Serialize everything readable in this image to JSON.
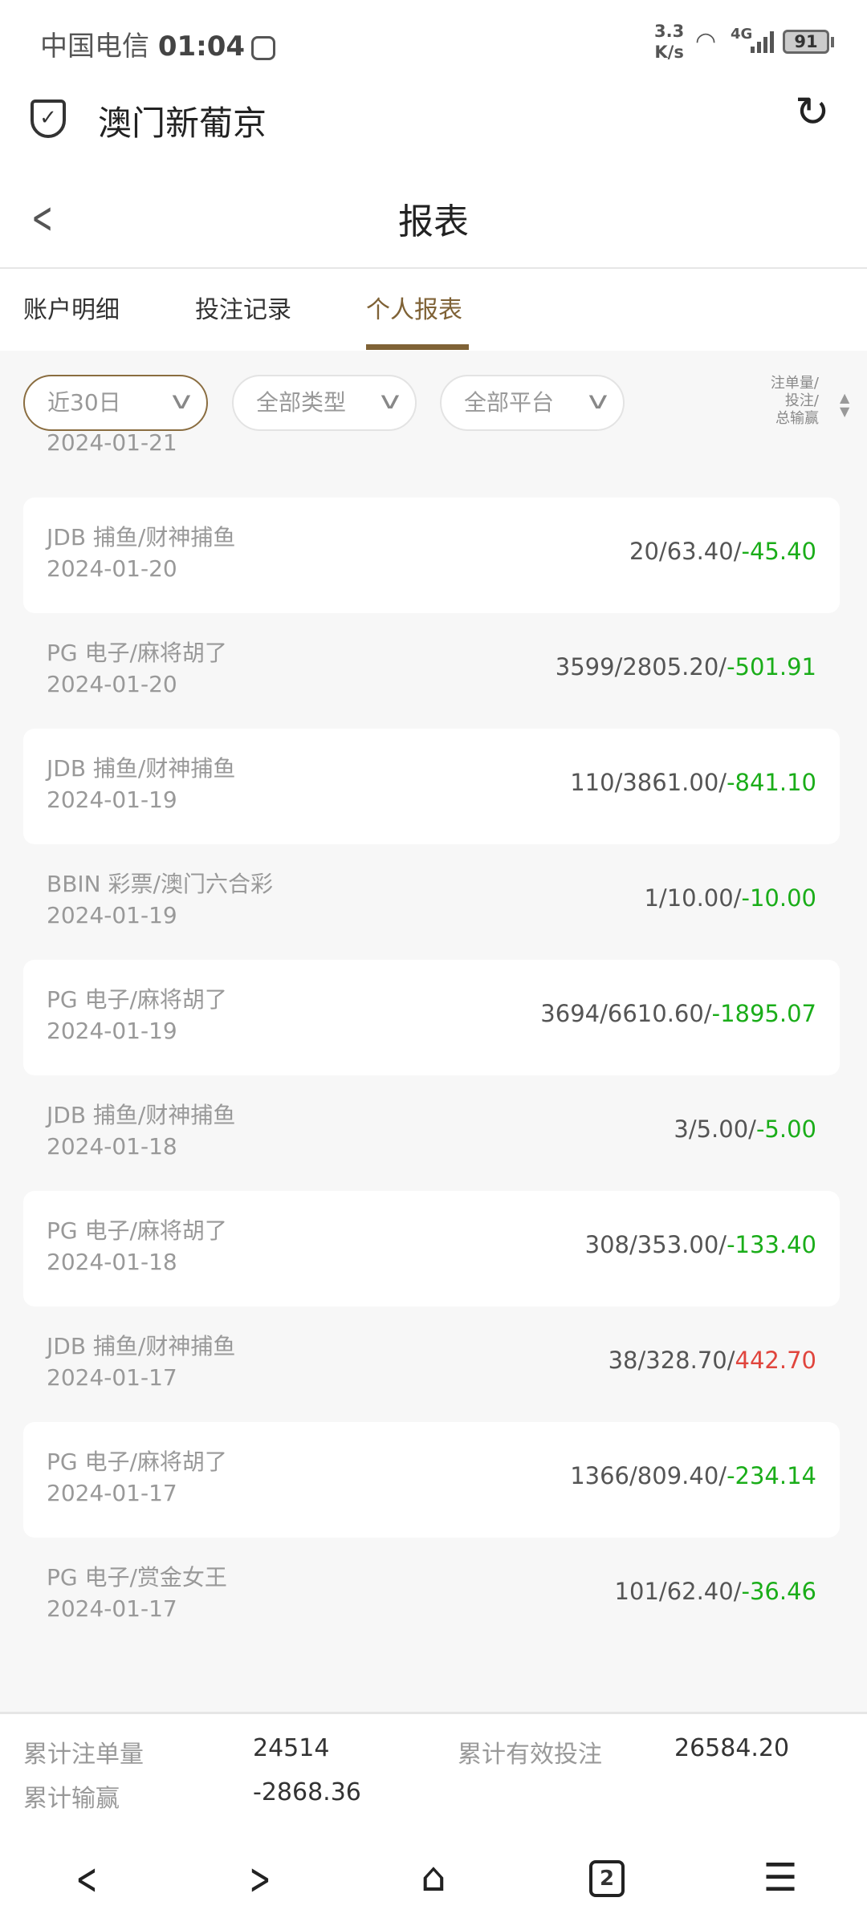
{
  "status": {
    "carrier": "中国电信",
    "time": "01:04",
    "speed_value": "3.3",
    "speed_unit": "K/s",
    "network": "4G",
    "battery": "91"
  },
  "app": {
    "name": "澳门新葡京"
  },
  "page": {
    "title": "报表"
  },
  "tabs": [
    {
      "label": "账户明细"
    },
    {
      "label": "投注记录"
    },
    {
      "label": "个人报表",
      "active": true
    }
  ],
  "filters": [
    {
      "label": "近30日"
    },
    {
      "label": "全部类型"
    },
    {
      "label": "全部平台"
    }
  ],
  "sort": {
    "line1": "注单量/",
    "line2": "投注/",
    "line3": "总输赢"
  },
  "clipped_date": "2024-01-21",
  "rows": [
    {
      "name": "JDB 捕鱼/财神捕鱼",
      "date": "2024-01-20",
      "count": "20",
      "bet": "63.40",
      "result": "-45.40"
    },
    {
      "name": "PG 电子/麻将胡了",
      "date": "2024-01-20",
      "count": "3599",
      "bet": "2805.20",
      "result": "-501.91"
    },
    {
      "name": "JDB 捕鱼/财神捕鱼",
      "date": "2024-01-19",
      "count": "110",
      "bet": "3861.00",
      "result": "-841.10"
    },
    {
      "name": "BBIN 彩票/澳门六合彩",
      "date": "2024-01-19",
      "count": "1",
      "bet": "10.00",
      "result": "-10.00"
    },
    {
      "name": "PG 电子/麻将胡了",
      "date": "2024-01-19",
      "count": "3694",
      "bet": "6610.60",
      "result": "-1895.07"
    },
    {
      "name": "JDB 捕鱼/财神捕鱼",
      "date": "2024-01-18",
      "count": "3",
      "bet": "5.00",
      "result": "-5.00"
    },
    {
      "name": "PG 电子/麻将胡了",
      "date": "2024-01-18",
      "count": "308",
      "bet": "353.00",
      "result": "-133.40"
    },
    {
      "name": "JDB 捕鱼/财神捕鱼",
      "date": "2024-01-17",
      "count": "38",
      "bet": "328.70",
      "result": "442.70"
    },
    {
      "name": "PG 电子/麻将胡了",
      "date": "2024-01-17",
      "count": "1366",
      "bet": "809.40",
      "result": "-234.14"
    },
    {
      "name": "PG 电子/赏金女王",
      "date": "2024-01-17",
      "count": "101",
      "bet": "62.40",
      "result": "-36.46"
    }
  ],
  "summary": {
    "count_label": "累计注单量",
    "count": "24514",
    "bet_label": "累计有效投注",
    "bet": "26584.20",
    "result_label": "累计输赢",
    "result": "-2868.36"
  },
  "navbar": {
    "tab_count": "2"
  },
  "colors": {
    "accent": "#7f6236",
    "loss": "#1aad19",
    "win": "#e0453d"
  }
}
